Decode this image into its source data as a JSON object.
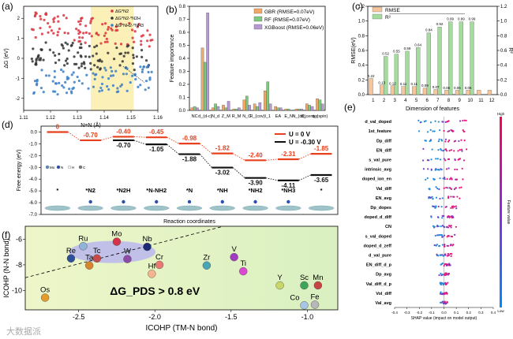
{
  "panel_labels": {
    "a": "(a)",
    "b": "(b)",
    "c": "(c)",
    "d": "(d)",
    "e": "(e)",
    "f": "(f)"
  },
  "watermark": "大数据派",
  "chart_data": [
    {
      "id": "a",
      "type": "scatter",
      "xlabel": "N≡N (Å)",
      "ylabel": "ΔG (eV)",
      "xlim": [
        1.11,
        1.16
      ],
      "ylim": [
        -2.6,
        2.6
      ],
      "xticks": [
        "1.11",
        "1.12",
        "1.13",
        "1.14",
        "1.15",
        "1.16"
      ],
      "yticks": [
        "2",
        "1",
        "0",
        "-1",
        "-2"
      ],
      "highlight_x": [
        1.135,
        1.151
      ],
      "series": [
        {
          "name": "ΔG*N2",
          "color": "#d9343c",
          "center": 1.4,
          "slope": -22
        },
        {
          "name": "ΔG*N2-*N2H",
          "color": "#333333",
          "center": 0.1,
          "slope": -10
        },
        {
          "name": "ΔG*NH2-*NH3",
          "color": "#3a7ec8",
          "center": -1.1,
          "slope": 8
        }
      ]
    },
    {
      "id": "b",
      "type": "bar",
      "ylabel": "Feature importance",
      "ylim": [
        0,
        0.8
      ],
      "yticks": [
        "0.0",
        "0.1",
        "0.2",
        "0.3",
        "0.4",
        "0.5",
        "0.6",
        "0.7",
        "0.8"
      ],
      "categories": [
        "NC",
        "d_(d-c)",
        "N_d",
        "Z_M",
        "R_M",
        "N_C",
        "R_(cov)",
        "I_1",
        "EA",
        "E_N",
        "N_(d0)",
        "d_center",
        "q_(spin)"
      ],
      "series": [
        {
          "name": "GBR (RMSE=0.07eV)",
          "color": "#f2a765",
          "values": [
            0.02,
            0.48,
            0.02,
            0.04,
            0.01,
            0.08,
            0.05,
            0.15,
            0.03,
            0.01,
            0.01,
            0.05,
            0.09
          ]
        },
        {
          "name": "RF (RMSE=0.07eV)",
          "color": "#7fc97f",
          "values": [
            0.03,
            0.37,
            0.05,
            0.02,
            0.01,
            0.11,
            0.03,
            0.22,
            0.02,
            0.01,
            0.01,
            0.04,
            0.08
          ]
        },
        {
          "name": "XGBoost (RMSE=0.06eV)",
          "color": "#b79ad4",
          "values": [
            0.02,
            0.75,
            0.03,
            0.07,
            0.02,
            0.04,
            0.06,
            0.05,
            0.02,
            0.0,
            0.01,
            0.03,
            0.05
          ]
        }
      ]
    },
    {
      "id": "c",
      "type": "bar",
      "xlabel": "Dimension of features",
      "ylabel": "RMSE(eV)",
      "ylabel2": "R²",
      "ylim": [
        0,
        1.2
      ],
      "ylim2": [
        0,
        1.2
      ],
      "yticks": [
        "0.0",
        "0.2",
        "0.4",
        "0.6",
        "0.8",
        "1.0",
        "1.2"
      ],
      "categories": [
        "1",
        "2",
        "3",
        "4",
        "5",
        "6",
        "7",
        "8",
        "9",
        "10",
        "11",
        "12"
      ],
      "series": [
        {
          "name": "RMSE",
          "color": "#f6c59c",
          "values": [
            0.22,
            0.13,
            0.12,
            0.11,
            0.11,
            0.09,
            0.07,
            0.06,
            0.06,
            0.06,
            0.06,
            0.06
          ]
        },
        {
          "name": "R²",
          "color": "#a6dba0",
          "values": [
            0.0,
            0.52,
            0.55,
            0.59,
            0.64,
            0.84,
            0.92,
            0.99,
            0.99,
            0.99,
            0.0,
            0.0
          ]
        }
      ],
      "labels_rmse": [
        "0.22",
        "0.13",
        "0.12",
        "0.11",
        "0.11",
        "0.09",
        "0.07",
        "0.06",
        "0.06",
        "0.06",
        "",
        ""
      ],
      "labels_r2": [
        "",
        "0.52",
        "0.55",
        "0.59",
        "0.64",
        "0.84",
        "0.92",
        "0.99",
        "0.99",
        "0.99",
        "",
        ""
      ]
    },
    {
      "id": "d",
      "type": "line",
      "xlabel": "Reaction coordinates",
      "ylabel": "Free energy (eV)",
      "ylim": [
        -7,
        0.5
      ],
      "yticks": [
        "0.0",
        "-1.0",
        "-2.0",
        "-3.0",
        "-4.0",
        "-5.0",
        "-6.0",
        "-7.0"
      ],
      "categories": [
        "*",
        "*N2",
        "*N2H",
        "*N-NH2",
        "*N",
        "*NH",
        "*NH2",
        "*NH3",
        "*"
      ],
      "series": [
        {
          "name": "U = 0 V",
          "color": "#e8401c",
          "values": [
            0,
            -0.7,
            -0.4,
            -0.45,
            -0.98,
            -1.82,
            -2.4,
            -2.31,
            -1.85
          ],
          "labels": [
            "0",
            "-0.70",
            "-0.40",
            "-0.45",
            "-0.98",
            "-1.82",
            "-2.40",
            "-2.31",
            "-1.85"
          ]
        },
        {
          "name": "U = -0.30 V",
          "color": "#111111",
          "values": [
            null,
            null,
            -0.7,
            -1.05,
            -1.88,
            -3.02,
            -3.9,
            -4.11,
            -3.65
          ],
          "labels": [
            "",
            "",
            "-0.70",
            "-1.05",
            "-1.88",
            "-3.02",
            "-3.90",
            "-4.11",
            "-3.65"
          ]
        }
      ],
      "legend_atoms": [
        "Mo",
        "N",
        "H",
        "C"
      ]
    },
    {
      "id": "e",
      "type": "scatter",
      "xlabel": "SHAP value (impact on model output)",
      "colorbar_label": "Feature value",
      "colorbar_high": "High",
      "colorbar_low": "Low",
      "xlim": [
        -0.4,
        0.4
      ],
      "xticks": [
        "-0.4",
        "-0.3",
        "-0.2",
        "-0.1",
        "0.0",
        "0.1",
        "0.2",
        "0.3",
        "0.4"
      ],
      "features": [
        "d_val_doped",
        "1st_feature",
        "Dp_diff",
        "EN_diff",
        "s_val_pure",
        "intrinsic_avg",
        "doped_ion_en",
        "Val_diff",
        "EN_avg",
        "Dp_dopes",
        "doped_d_diff",
        "CN",
        "s_val_doped",
        "doped_d_zeff",
        "d_val_pure",
        "EN_diff_d_p",
        "Dp_avg",
        "Val_diff_d_p",
        "Vol_diff",
        "Val_avg"
      ]
    },
    {
      "id": "f",
      "type": "scatter",
      "xlabel": "ICOHP (TM-N bond)",
      "ylabel": "ICOHP (N-N bond)",
      "xlim": [
        -2.85,
        -0.8
      ],
      "ylim": [
        -11.5,
        -5
      ],
      "xticks": [
        "-2.5",
        "-2.0",
        "-1.5",
        "-1.0"
      ],
      "yticks": [
        "-6",
        "-8",
        "-10"
      ],
      "annotation": "ΔG_PDS > 0.8 eV",
      "points": [
        {
          "label": "Ru",
          "x": -2.47,
          "y": -6.55,
          "color": "#8fb3d9"
        },
        {
          "label": "Mo",
          "x": -2.25,
          "y": -6.2,
          "color": "#d5334a"
        },
        {
          "label": "Nb",
          "x": -2.05,
          "y": -6.6,
          "color": "#1c2a74"
        },
        {
          "label": "Re",
          "x": -2.55,
          "y": -7.5,
          "color": "#2d4f9a"
        },
        {
          "label": "Tc",
          "x": -2.38,
          "y": -7.5,
          "color": "#c84b4b"
        },
        {
          "label": "W",
          "x": -2.18,
          "y": -7.55,
          "color": "#8e4aa8"
        },
        {
          "label": "Ta",
          "x": -2.43,
          "y": -8.05,
          "color": "#d8852b"
        },
        {
          "label": "Cr",
          "x": -1.97,
          "y": -8.0,
          "color": "#e87a72"
        },
        {
          "label": "Hf",
          "x": -2.02,
          "y": -8.7,
          "color": "#f3b48f"
        },
        {
          "label": "V",
          "x": -1.48,
          "y": -7.4,
          "color": "#a13cc1"
        },
        {
          "label": "Zr",
          "x": -1.66,
          "y": -8.05,
          "color": "#4aa5b5"
        },
        {
          "label": "Ti",
          "x": -1.42,
          "y": -8.5,
          "color": "#d94ad1"
        },
        {
          "label": "Y",
          "x": -1.18,
          "y": -9.6,
          "color": "#c9d66a"
        },
        {
          "label": "Sc",
          "x": -1.02,
          "y": -9.6,
          "color": "#3ca65a"
        },
        {
          "label": "Mn",
          "x": -0.93,
          "y": -9.6,
          "color": "#c84444"
        },
        {
          "label": "Os",
          "x": -2.72,
          "y": -10.55,
          "color": "#e59a2c"
        },
        {
          "label": "Co",
          "x": -1.02,
          "y": -11.15,
          "color": "#a7c5e6"
        },
        {
          "label": "Fe",
          "x": -0.95,
          "y": -11.1,
          "color": "#b7b7b7"
        }
      ]
    }
  ]
}
